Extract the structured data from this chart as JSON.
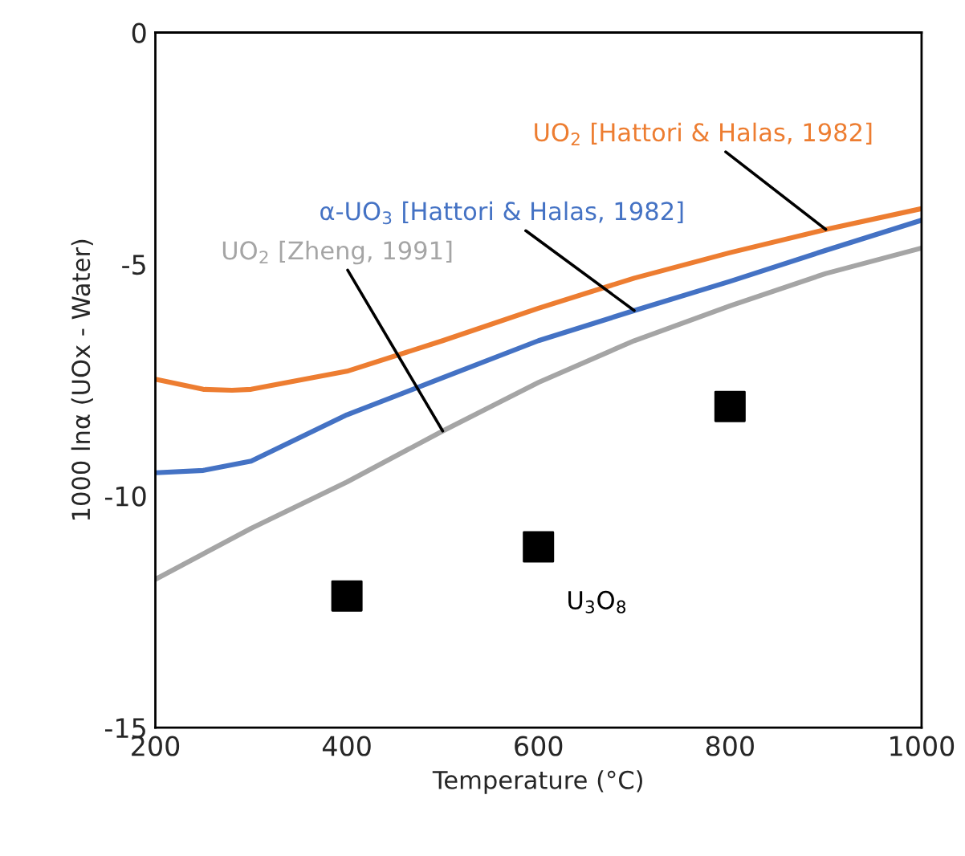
{
  "chart_data": {
    "type": "line",
    "xlabel": "Temperature (°C)",
    "ylabel": "1000 lnα (UOx - Water)",
    "xlim": [
      200,
      1000
    ],
    "xticks": [
      200,
      400,
      600,
      800,
      1000
    ],
    "ylim": [
      -15,
      0
    ],
    "yticks": [
      -15,
      -10,
      -5,
      0
    ],
    "grid": false,
    "legend": false,
    "series": [
      {
        "name": "UO$_{2}$ [Hattori & Halas, 1982]",
        "color": "#ed7d31",
        "x": [
          200,
          250,
          280,
          300,
          400,
          500,
          600,
          700,
          800,
          900,
          1000
        ],
        "values": [
          -7.48,
          -7.7,
          -7.72,
          -7.7,
          -7.31,
          -6.65,
          -5.95,
          -5.3,
          -4.75,
          -4.25,
          -3.8
        ]
      },
      {
        "name": "α-UO$_{3}$ [Hattori & Halas, 1982]",
        "color": "#4472c4",
        "x": [
          200,
          250,
          300,
          400,
          500,
          600,
          700,
          800,
          900,
          1000
        ],
        "values": [
          -9.5,
          -9.45,
          -9.25,
          -8.25,
          -7.45,
          -6.65,
          -6.0,
          -5.37,
          -4.7,
          -4.05
        ]
      },
      {
        "name": "UO$_{2}$ [Zheng, 1991]",
        "color": "#a5a5a5",
        "x": [
          200,
          300,
          400,
          500,
          600,
          700,
          800,
          900,
          1000
        ],
        "values": [
          -11.8,
          -10.7,
          -9.7,
          -8.6,
          -7.55,
          -6.65,
          -5.9,
          -5.2,
          -4.65
        ]
      },
      {
        "name": "U$_{3}$O$_{8}$",
        "type": "scatter",
        "marker": "square",
        "color": "#000000",
        "x": [
          400,
          600,
          800
        ],
        "values": [
          -12.16,
          -11.1,
          -8.07
        ]
      }
    ]
  }
}
